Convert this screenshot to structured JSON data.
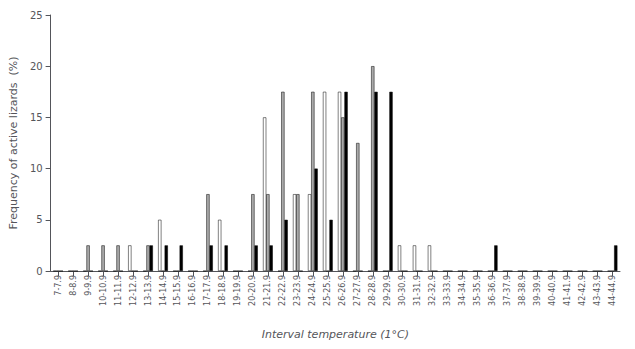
{
  "chart_data": {
    "type": "bar",
    "xlabel": "Interval temperature (1°C)",
    "ylabel": "Frequency of active lizards  (%)",
    "categories": [
      "7-7.9",
      "8-8.9",
      "9-9.9",
      "10-10.9",
      "11-11.9",
      "12-12.9",
      "13-13.9",
      "14-14.9",
      "15-15.9",
      "16-16.9",
      "17-17.9",
      "18-18.9",
      "19-19.9",
      "20-20.9",
      "21-21.9",
      "22-22.9",
      "23-23.9",
      "24-24.9",
      "25-25.9",
      "26-26.9",
      "27-27.9",
      "28-28.9",
      "29-29.9",
      "30-30.9",
      "31-31.9",
      "32-32.9",
      "33-33.9",
      "34-34.9",
      "35-35.9",
      "36-36.9",
      "37-37.9",
      "38-38.9",
      "39-39.9",
      "40-40.9",
      "41-41.9",
      "42-42.9",
      "43-43.9",
      "44-44.9"
    ],
    "series": [
      {
        "color": "#ffffff",
        "values": [
          0,
          0,
          0,
          0,
          0,
          2.5,
          0,
          5,
          0,
          0,
          0,
          5,
          0,
          0,
          15,
          0,
          7.5,
          7.5,
          17.5,
          17.5,
          0,
          0,
          0,
          2.5,
          2.5,
          2.5,
          0,
          0,
          0,
          0,
          0,
          0,
          0,
          0,
          0,
          0,
          0,
          0
        ]
      },
      {
        "color": "#aaaaaa",
        "values": [
          0,
          0,
          2.5,
          2.5,
          2.5,
          0,
          2.5,
          0,
          0,
          0,
          7.5,
          0,
          0,
          7.5,
          7.5,
          17.5,
          7.5,
          17.5,
          0,
          15,
          12.5,
          20,
          0,
          0,
          0,
          0,
          0,
          0,
          0,
          0,
          0,
          0,
          0,
          0,
          0,
          0,
          0,
          0
        ]
      },
      {
        "color": "#000000",
        "values": [
          0,
          0,
          0,
          0,
          0,
          0,
          2.5,
          2.5,
          2.5,
          0,
          2.5,
          2.5,
          0,
          2.5,
          2.5,
          5,
          0,
          10,
          5,
          17.5,
          0,
          17.5,
          17.5,
          0,
          0,
          0,
          0,
          0,
          0,
          2.5,
          0,
          0,
          0,
          0,
          0,
          0,
          0,
          2.5
        ]
      }
    ],
    "ylim": [
      0,
      25
    ],
    "yticks": [
      0,
      5,
      10,
      15,
      20,
      25
    ],
    "grid": false
  }
}
